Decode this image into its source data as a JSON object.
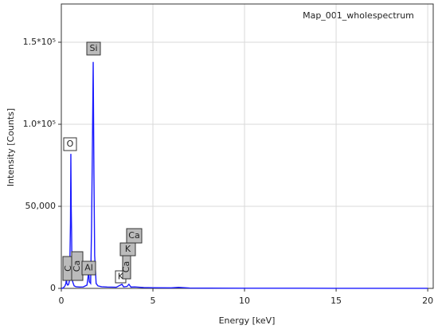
{
  "chart_data": {
    "type": "line",
    "title": "Map_001_wholespectrum",
    "x_label": "Energy [keV]",
    "y_label": "Intensity [Counts]",
    "x": [
      0,
      0.1,
      0.2,
      0.25,
      0.28,
      0.3,
      0.35,
      0.4,
      0.45,
      0.5,
      0.52,
      0.54,
      0.56,
      0.58,
      0.62,
      0.7,
      0.8,
      1.0,
      1.2,
      1.4,
      1.45,
      1.49,
      1.53,
      1.6,
      1.65,
      1.7,
      1.74,
      1.78,
      1.82,
      1.9,
      2.0,
      2.2,
      2.5,
      3.0,
      3.31,
      3.4,
      3.59,
      3.69,
      3.8,
      4.01,
      4.5,
      5,
      6,
      6.4,
      7,
      8,
      10,
      15,
      20
    ],
    "series": [
      {
        "color": "#1a1aff",
        "values": [
          0,
          200,
          1500,
          3000,
          6000,
          3000,
          2000,
          2500,
          5000,
          40000,
          82000,
          50000,
          35000,
          12000,
          4000,
          1500,
          1000,
          800,
          900,
          2000,
          6000,
          10000,
          4000,
          3000,
          37000,
          90000,
          138000,
          70000,
          20000,
          3000,
          1500,
          1000,
          800,
          700,
          2500,
          900,
          1200,
          2500,
          800,
          900,
          500,
          400,
          300,
          600,
          200,
          150,
          100,
          50,
          30
        ]
      }
    ],
    "xlim": [
      0,
      20.3
    ],
    "xticks": [
      0,
      5,
      10,
      15,
      20
    ],
    "ylim": [
      0,
      173300
    ],
    "yticks": [
      0,
      {
        "value": 50000,
        "label": "50,000"
      },
      {
        "value": 100000,
        "label": "1.0*10⁵"
      },
      {
        "value": 150000,
        "label": "1.5*10⁵"
      }
    ],
    "grid": true,
    "annotations": [
      "O",
      "Si",
      "C",
      "Ca",
      "Al",
      "K",
      "Ca",
      "K",
      "Ca"
    ]
  }
}
